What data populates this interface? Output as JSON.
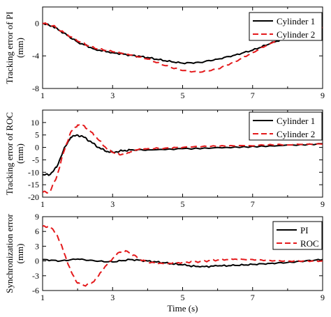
{
  "colors": {
    "black": "#000000",
    "red": "#e41a1c"
  },
  "chart_data": [
    {
      "type": "line",
      "ylabel": "Tracking error of PI",
      "yunit": "(mm)",
      "xlim": [
        1,
        9
      ],
      "ylim": [
        -8,
        2
      ],
      "xticks": [
        "1",
        "3",
        "5",
        "7",
        "9"
      ],
      "yticks": [
        "0",
        "-4",
        "-8"
      ],
      "ytick_values": [
        0,
        -4,
        -8
      ],
      "legend": "top-right",
      "series": [
        {
          "name": "Cylinder 1",
          "color": "#000000",
          "dash": "solid",
          "x": [
            1.0,
            1.3,
            1.6,
            2.0,
            2.5,
            3.0,
            3.5,
            4.0,
            4.5,
            5.0,
            5.5,
            6.0,
            6.5,
            7.0,
            7.5,
            8.0,
            8.5,
            9.0
          ],
          "y": [
            0.0,
            -0.4,
            -1.2,
            -2.3,
            -3.2,
            -3.6,
            -3.9,
            -4.2,
            -4.6,
            -4.9,
            -4.8,
            -4.4,
            -3.9,
            -3.3,
            -2.5,
            -1.7,
            -1.1,
            -0.6
          ]
        },
        {
          "name": "Cylinder 2",
          "color": "#e41a1c",
          "dash": "dashed",
          "x": [
            1.0,
            1.3,
            1.6,
            2.0,
            2.5,
            3.0,
            3.5,
            4.0,
            4.5,
            5.0,
            5.5,
            6.0,
            6.5,
            7.0,
            7.5,
            8.0,
            8.5,
            9.0
          ],
          "y": [
            0.0,
            -0.3,
            -1.1,
            -2.2,
            -3.1,
            -3.5,
            -3.9,
            -4.4,
            -5.2,
            -5.8,
            -6.0,
            -5.6,
            -4.7,
            -3.6,
            -2.5,
            -1.6,
            -1.0,
            -0.5
          ]
        }
      ]
    },
    {
      "type": "line",
      "ylabel": "Tracking error of ROC",
      "yunit": "(mm)",
      "xlim": [
        1,
        9
      ],
      "ylim": [
        -20,
        15
      ],
      "xticks": [
        "1",
        "3",
        "5",
        "7",
        "9"
      ],
      "yticks": [
        "10",
        "5",
        "0",
        "-5",
        "-10",
        "-15",
        "-20"
      ],
      "ytick_values": [
        10,
        5,
        0,
        -5,
        -10,
        -15,
        -20
      ],
      "legend": "top-right",
      "series": [
        {
          "name": "Cylinder 1",
          "color": "#000000",
          "dash": "solid",
          "x": [
            1.0,
            1.2,
            1.4,
            1.6,
            1.8,
            2.0,
            2.2,
            2.4,
            2.6,
            2.8,
            3.0,
            3.2,
            3.5,
            4.0,
            5.0,
            6.0,
            7.0,
            8.0,
            9.0
          ],
          "y": [
            -11,
            -11,
            -8,
            -1,
            4,
            5,
            4,
            2,
            0,
            -1.5,
            -2,
            -1.5,
            -1,
            -1,
            -0.5,
            0,
            0.5,
            1,
            1.5
          ]
        },
        {
          "name": "Cylinder 2",
          "color": "#e41a1c",
          "dash": "dashed",
          "x": [
            1.0,
            1.2,
            1.4,
            1.6,
            1.8,
            2.0,
            2.2,
            2.4,
            2.6,
            2.8,
            3.0,
            3.2,
            3.4,
            3.7,
            4.0,
            4.5,
            5.0,
            6.0,
            7.0,
            8.0,
            9.0
          ],
          "y": [
            -18,
            -18,
            -12,
            -2,
            6,
            9,
            8.5,
            6,
            3,
            0,
            -2,
            -3,
            -2.5,
            -1,
            -0.5,
            -0.3,
            0,
            0.3,
            0.6,
            1,
            1.3
          ]
        }
      ]
    },
    {
      "type": "line",
      "ylabel": "Synchronization error",
      "yunit": "(mm)",
      "xlabel": "Time (s)",
      "xlim": [
        1,
        9
      ],
      "ylim": [
        -6,
        9
      ],
      "xticks": [
        "1",
        "3",
        "5",
        "7",
        "9"
      ],
      "yticks": [
        "9",
        "6",
        "3",
        "0",
        "-3",
        "-6"
      ],
      "ytick_values": [
        9,
        6,
        3,
        0,
        -3,
        -6
      ],
      "legend": "top-right",
      "series": [
        {
          "name": "PI",
          "color": "#000000",
          "dash": "solid",
          "x": [
            1.0,
            1.5,
            2.0,
            2.5,
            3.0,
            3.5,
            4.0,
            4.5,
            5.0,
            5.5,
            6.0,
            6.5,
            7.0,
            7.5,
            8.0,
            8.5,
            9.0
          ],
          "y": [
            0.3,
            0.0,
            0.4,
            0.0,
            -0.2,
            0.3,
            0.0,
            -0.4,
            -0.8,
            -1.2,
            -1.0,
            -0.9,
            -0.7,
            -0.5,
            -0.3,
            0.0,
            0.3
          ]
        },
        {
          "name": "ROC",
          "color": "#e41a1c",
          "dash": "dashed",
          "x": [
            1.0,
            1.2,
            1.4,
            1.6,
            1.8,
            2.0,
            2.2,
            2.4,
            2.6,
            2.8,
            3.0,
            3.2,
            3.4,
            3.6,
            3.8,
            4.0,
            4.5,
            5.0,
            5.5,
            6.0,
            6.5,
            7.0,
            7.5,
            8.0,
            8.5,
            9.0
          ],
          "y": [
            7,
            7,
            5.5,
            2,
            -2,
            -4.5,
            -5,
            -4.5,
            -3,
            -1,
            0.5,
            1.8,
            2,
            1.2,
            0.3,
            -0.2,
            -0.5,
            -0.3,
            -0.1,
            0.2,
            0.4,
            0.3,
            0.1,
            0,
            0,
            0
          ]
        }
      ]
    }
  ]
}
